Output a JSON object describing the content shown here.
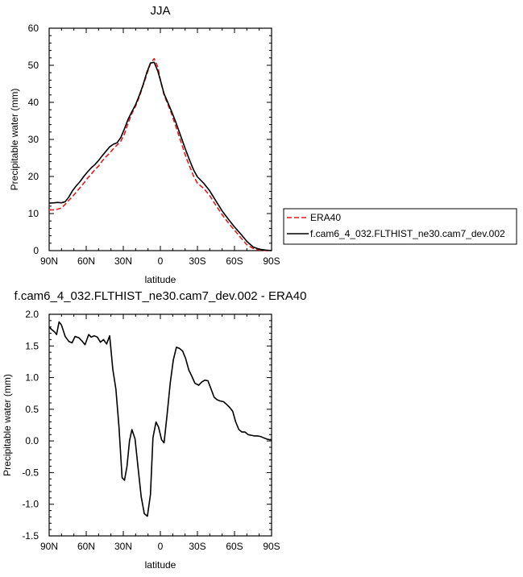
{
  "chart_data": [
    {
      "type": "line",
      "title": "JJA",
      "xlabel": "latitude",
      "ylabel": "Precipitable water (mm)",
      "xlim": [
        90,
        -90
      ],
      "ylim": [
        0,
        60
      ],
      "xticks": [
        90,
        60,
        30,
        0,
        -30,
        -60,
        -90
      ],
      "xtick_labels": [
        "90N",
        "60N",
        "30N",
        "0",
        "30S",
        "60S",
        "90S"
      ],
      "yticks": [
        0,
        10,
        20,
        30,
        40,
        50,
        60
      ],
      "ytick_labels": [
        "0",
        "10",
        "20",
        "30",
        "40",
        "50",
        "60"
      ],
      "legend_position": "right",
      "series": [
        {
          "name": "ERA40",
          "color": "#e41a1c",
          "dash": "dashed",
          "x": [
            90,
            86,
            83,
            80,
            77,
            74,
            71,
            68,
            65,
            62,
            59,
            56,
            53,
            50,
            47,
            44,
            41,
            38,
            35,
            32,
            29,
            26,
            23,
            20,
            17,
            14,
            11,
            8,
            5,
            2,
            0,
            -3,
            -6,
            -9,
            -12,
            -15,
            -18,
            -21,
            -24,
            -27,
            -30,
            -35,
            -40,
            -45,
            -50,
            -55,
            -60,
            -65,
            -70,
            -75,
            -80,
            -85,
            -90
          ],
          "y": [
            11.0,
            11.0,
            11.2,
            11.5,
            12.5,
            13.6,
            14.6,
            15.8,
            17.0,
            18.2,
            19.5,
            20.6,
            21.8,
            22.8,
            24.2,
            25.3,
            26.3,
            27.5,
            28.5,
            29.5,
            31.5,
            34.5,
            37.0,
            39.0,
            41.5,
            44.5,
            47.5,
            50.5,
            51.8,
            49.5,
            46.0,
            42.0,
            39.5,
            37.0,
            34.0,
            31.0,
            28.0,
            25.0,
            22.5,
            20.0,
            18.2,
            16.8,
            14.8,
            12.2,
            9.7,
            7.5,
            5.5,
            3.5,
            1.6,
            0.6,
            0.2,
            0.05,
            0.0
          ]
        },
        {
          "name": "f.cam6_4_032.FLTHIST_ne30.cam7_dev.002",
          "color": "#000000",
          "dash": "solid",
          "x": [
            90,
            86,
            83,
            80,
            77,
            74,
            71,
            68,
            65,
            62,
            59,
            56,
            53,
            50,
            47,
            44,
            41,
            38,
            35,
            32,
            29,
            26,
            23,
            20,
            17,
            14,
            11,
            8,
            5,
            2,
            0,
            -3,
            -6,
            -9,
            -12,
            -15,
            -18,
            -21,
            -24,
            -27,
            -30,
            -35,
            -40,
            -45,
            -50,
            -55,
            -60,
            -65,
            -70,
            -75,
            -80,
            -85,
            -90
          ],
          "y": [
            12.8,
            12.9,
            13.0,
            12.9,
            13.2,
            14.5,
            16.2,
            17.5,
            18.6,
            20.0,
            21.2,
            22.3,
            23.2,
            24.3,
            25.6,
            26.8,
            28.0,
            28.7,
            29.1,
            30.5,
            32.9,
            35.5,
            37.5,
            39.4,
            41.9,
            44.7,
            48.0,
            50.6,
            50.8,
            48.4,
            46.0,
            42.3,
            40.0,
            37.6,
            35.1,
            32.3,
            29.5,
            26.7,
            24.1,
            21.7,
            19.9,
            18.2,
            16.1,
            13.4,
            10.7,
            8.5,
            6.4,
            4.5,
            2.5,
            1.0,
            0.4,
            0.15,
            0.0
          ]
        }
      ]
    },
    {
      "type": "line",
      "title": "f.cam6_4_032.FLTHIST_ne30.cam7_dev.002 - ERA40",
      "xlabel": "latitude",
      "ylabel": "Precipitable water (mm)",
      "xlim": [
        90,
        -90
      ],
      "ylim": [
        -1.5,
        2.0
      ],
      "xticks": [
        90,
        60,
        30,
        0,
        -30,
        -60,
        -90
      ],
      "xtick_labels": [
        "90N",
        "60N",
        "30N",
        "0",
        "30S",
        "60S",
        "90S"
      ],
      "yticks": [
        -1.5,
        -1.0,
        -0.5,
        0.0,
        0.5,
        1.0,
        1.5,
        2.0
      ],
      "ytick_labels": [
        "-1.5",
        "-1.0",
        "-0.5",
        "0.0",
        "0.5",
        "1.0",
        "1.5",
        "2.0"
      ],
      "series": [
        {
          "color": "#000000",
          "dash": "solid",
          "x": [
            90,
            88,
            85.5,
            84,
            82,
            80,
            77,
            74,
            71.5,
            69,
            66,
            63.5,
            61,
            58,
            56,
            53.5,
            51,
            48.5,
            46,
            43.5,
            41,
            38.5,
            36,
            33.5,
            31,
            29,
            27,
            25,
            23,
            20.5,
            18,
            15.5,
            13,
            10.5,
            8,
            6,
            3.5,
            1.5,
            -1,
            -3,
            -5.5,
            -8,
            -10.5,
            -13,
            -15.5,
            -18,
            -20.5,
            -23,
            -25.5,
            -28,
            -31,
            -33.5,
            -36,
            -38.5,
            -41,
            -43.5,
            -46,
            -48.5,
            -51,
            -53.5,
            -56,
            -58.5,
            -61,
            -63.5,
            -66,
            -68.5,
            -71,
            -73.5,
            -76,
            -78.5,
            -81,
            -83.5,
            -86,
            -88.5,
            -90
          ],
          "y": [
            1.8,
            1.76,
            1.72,
            1.68,
            1.88,
            1.83,
            1.65,
            1.57,
            1.55,
            1.65,
            1.63,
            1.58,
            1.52,
            1.68,
            1.64,
            1.66,
            1.64,
            1.56,
            1.6,
            1.53,
            1.66,
            1.13,
            0.82,
            0.23,
            -0.58,
            -0.62,
            -0.4,
            0.0,
            0.18,
            0.03,
            -0.43,
            -0.88,
            -1.15,
            -1.19,
            -0.85,
            0.05,
            0.3,
            0.22,
            0.02,
            -0.03,
            0.42,
            0.92,
            1.28,
            1.48,
            1.46,
            1.42,
            1.3,
            1.12,
            1.02,
            0.91,
            0.88,
            0.93,
            0.96,
            0.95,
            0.82,
            0.69,
            0.65,
            0.63,
            0.62,
            0.58,
            0.53,
            0.47,
            0.3,
            0.18,
            0.14,
            0.14,
            0.1,
            0.09,
            0.08,
            0.08,
            0.07,
            0.05,
            0.03,
            0.02,
            0.02
          ]
        }
      ]
    }
  ]
}
